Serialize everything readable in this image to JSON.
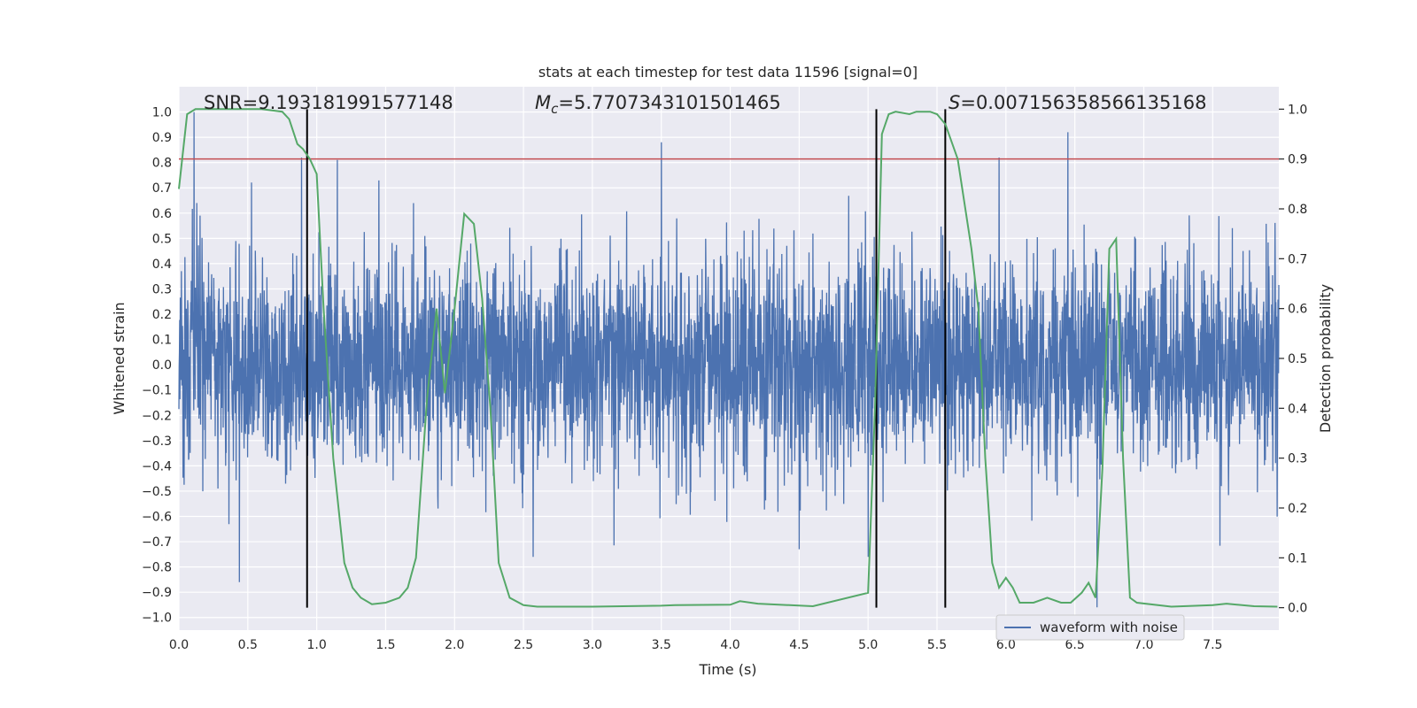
{
  "chart_data": {
    "type": "line",
    "title": "stats at each timestep for test data 11596 [signal=0]",
    "xlabel": "Time (s)",
    "ylabel": "Whitened strain",
    "y2label": "Detection probability",
    "xlim": [
      0.0,
      7.98
    ],
    "ylim": [
      -1.05,
      1.1
    ],
    "y2lim": [
      -0.045,
      1.045
    ],
    "xticks": [
      "0.0",
      "0.5",
      "1.0",
      "1.5",
      "2.0",
      "2.5",
      "3.0",
      "3.5",
      "4.0",
      "4.5",
      "5.0",
      "5.5",
      "6.0",
      "6.5",
      "7.0",
      "7.5"
    ],
    "yticks": [
      "1.0",
      "0.9",
      "0.8",
      "0.7",
      "0.6",
      "0.5",
      "0.4",
      "0.3",
      "0.2",
      "0.1",
      "0.0",
      "−0.1",
      "−0.2",
      "−0.3",
      "−0.4",
      "−0.5",
      "−0.6",
      "−0.7",
      "−0.8",
      "−0.9",
      "−1.0"
    ],
    "y2ticks": [
      "1.0",
      "0.9",
      "0.8",
      "0.7",
      "0.6",
      "0.5",
      "0.4",
      "0.3",
      "0.2",
      "0.1",
      "0.0"
    ],
    "grid": true,
    "legend": {
      "position": "bottom-right",
      "entries": [
        "waveform with noise"
      ]
    },
    "annotations": {
      "snr": "SNR=9.193181991577148",
      "mc_symbol": "M",
      "mc_sub": "c",
      "mc_value": "=5.7707343101501465",
      "s_symbol": "S",
      "s_value": "=0.007156358566135168"
    },
    "threshold": 0.9,
    "vlines": [
      0.93,
      5.06,
      5.56
    ],
    "series": [
      {
        "name": "waveform with noise",
        "kind": "noisy-strain",
        "color": "#4c72b0",
        "peaks": [
          {
            "x": 0.11,
            "y": 1.0
          },
          {
            "x": 0.13,
            "y": 0.64
          },
          {
            "x": 0.44,
            "y": -0.86
          },
          {
            "x": 0.89,
            "y": 0.82
          },
          {
            "x": 1.15,
            "y": 0.81
          },
          {
            "x": 2.57,
            "y": -0.76
          },
          {
            "x": 3.5,
            "y": 0.88
          },
          {
            "x": 4.5,
            "y": -0.73
          },
          {
            "x": 5.0,
            "y": -0.76
          },
          {
            "x": 6.45,
            "y": 0.92
          },
          {
            "x": 6.66,
            "y": -0.96
          },
          {
            "x": 5.95,
            "y": 0.82
          }
        ]
      },
      {
        "name": "detection probability",
        "axis": "right",
        "color": "#55a868",
        "x": [
          0.0,
          0.06,
          0.12,
          0.2,
          0.4,
          0.6,
          0.75,
          0.8,
          0.86,
          0.9,
          0.95,
          1.0,
          1.05,
          1.12,
          1.2,
          1.26,
          1.32,
          1.4,
          1.5,
          1.6,
          1.66,
          1.72,
          1.8,
          1.87,
          1.93,
          2.0,
          2.07,
          2.14,
          2.2,
          2.26,
          2.32,
          2.4,
          2.5,
          2.6,
          3.0,
          3.5,
          3.6,
          4.0,
          4.07,
          4.2,
          4.6,
          5.0,
          5.05,
          5.1,
          5.15,
          5.2,
          5.3,
          5.35,
          5.45,
          5.5,
          5.56,
          5.65,
          5.75,
          5.8,
          5.85,
          5.9,
          5.95,
          6.0,
          6.05,
          6.1,
          6.2,
          6.3,
          6.4,
          6.47,
          6.55,
          6.6,
          6.65,
          6.7,
          6.75,
          6.8,
          6.85,
          6.9,
          6.95,
          7.2,
          7.5,
          7.6,
          7.8,
          7.97
        ],
        "y": [
          0.84,
          0.99,
          1.0,
          1.0,
          1.0,
          1.0,
          0.995,
          0.98,
          0.93,
          0.92,
          0.9,
          0.87,
          0.6,
          0.3,
          0.09,
          0.04,
          0.02,
          0.007,
          0.01,
          0.02,
          0.04,
          0.1,
          0.42,
          0.6,
          0.43,
          0.6,
          0.79,
          0.77,
          0.62,
          0.4,
          0.09,
          0.02,
          0.005,
          0.002,
          0.002,
          0.004,
          0.005,
          0.006,
          0.013,
          0.008,
          0.003,
          0.03,
          0.4,
          0.95,
          0.99,
          0.995,
          0.99,
          0.995,
          0.995,
          0.99,
          0.97,
          0.9,
          0.72,
          0.6,
          0.3,
          0.09,
          0.04,
          0.06,
          0.04,
          0.01,
          0.01,
          0.02,
          0.01,
          0.01,
          0.03,
          0.05,
          0.02,
          0.28,
          0.72,
          0.74,
          0.3,
          0.02,
          0.01,
          0.002,
          0.005,
          0.008,
          0.003,
          0.002
        ]
      }
    ]
  }
}
